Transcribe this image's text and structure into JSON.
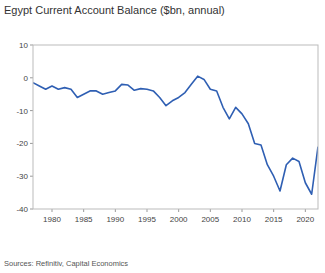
{
  "chart_data": {
    "type": "line",
    "title": "Egypt Current Account Balance ($bn, annual)",
    "source": "Sources: Refinitiv, Capital Economics",
    "x": [
      1977,
      1978,
      1979,
      1980,
      1981,
      1982,
      1983,
      1984,
      1985,
      1986,
      1987,
      1988,
      1989,
      1990,
      1991,
      1992,
      1993,
      1994,
      1995,
      1996,
      1997,
      1998,
      1999,
      2000,
      2001,
      2002,
      2003,
      2004,
      2005,
      2006,
      2007,
      2008,
      2009,
      2010,
      2011,
      2012,
      2013,
      2014,
      2015,
      2016,
      2017,
      2018,
      2019,
      2020,
      2021,
      2022
    ],
    "series": [
      {
        "name": "Current Account Balance",
        "color": "#2f5fb3",
        "values": [
          -1.5,
          -2.5,
          -3.5,
          -2.5,
          -3.5,
          -3,
          -3.5,
          -6,
          -5,
          -4,
          -4,
          -5,
          -4.5,
          -4,
          -2,
          -2.2,
          -3.8,
          -3.3,
          -3.5,
          -4,
          -6,
          -8.5,
          -7,
          -6,
          -4.5,
          -2,
          0.5,
          -0.5,
          -3.5,
          -4,
          -9,
          -12.5,
          -9,
          -11,
          -14,
          -20,
          -20.5,
          -26.5,
          -30,
          -34.5,
          -26.5,
          -24.5,
          -25.5,
          -32,
          -35.5,
          -21
        ]
      }
    ],
    "xlim": [
      1977,
      2022
    ],
    "xticks": [
      1980,
      1985,
      1990,
      1995,
      2000,
      2005,
      2010,
      2015,
      2020
    ],
    "ylim": [
      -40,
      10
    ],
    "yticks": [
      -40,
      -30,
      -20,
      -10,
      0,
      10
    ],
    "grid": false
  }
}
